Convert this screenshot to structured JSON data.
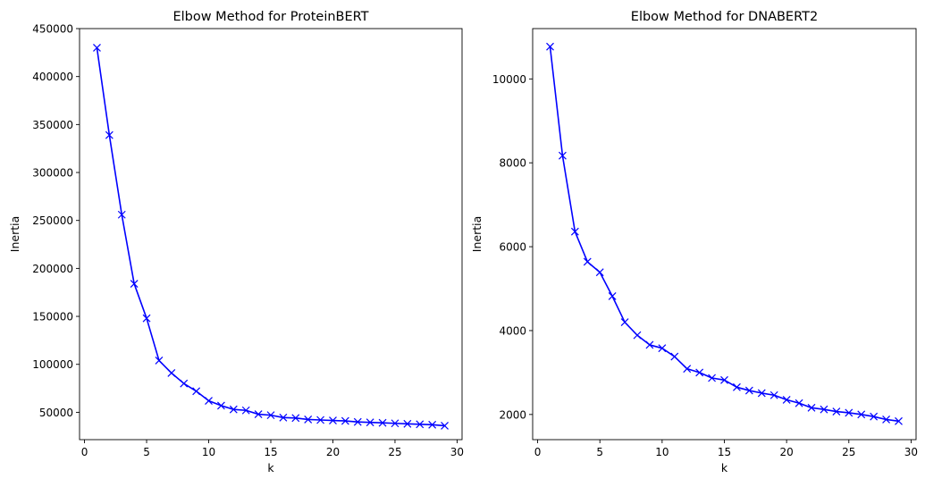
{
  "figure": {
    "background": "#ffffff"
  },
  "chart_data": [
    {
      "type": "line",
      "title": "Elbow Method for ProteinBERT",
      "xlabel": "k",
      "ylabel": "Inertia",
      "xlim": [
        -0.4,
        30.4
      ],
      "ylim": [
        21500,
        450000
      ],
      "xticks": [
        0,
        5,
        10,
        15,
        20,
        25,
        30
      ],
      "yticks": [
        50000,
        100000,
        150000,
        200000,
        250000,
        300000,
        350000,
        400000,
        450000
      ],
      "grid": false,
      "marker": "x",
      "color": "#0000ff",
      "x": [
        1,
        2,
        3,
        4,
        5,
        6,
        7,
        8,
        9,
        10,
        11,
        12,
        13,
        14,
        15,
        16,
        17,
        18,
        19,
        20,
        21,
        22,
        23,
        24,
        25,
        26,
        27,
        28,
        29
      ],
      "values": [
        430000,
        339000,
        256000,
        184000,
        148000,
        104000,
        91000,
        80000,
        72000,
        62000,
        57000,
        53000,
        52000,
        48000,
        47000,
        44500,
        44000,
        42500,
        42000,
        41500,
        41000,
        40000,
        39500,
        39000,
        38500,
        38000,
        37500,
        37000,
        36000
      ]
    },
    {
      "type": "line",
      "title": "Elbow Method for DNABERT2",
      "xlabel": "k",
      "ylabel": "Inertia",
      "xlim": [
        -0.4,
        30.4
      ],
      "ylim": [
        1400,
        11200
      ],
      "xticks": [
        0,
        5,
        10,
        15,
        20,
        25,
        30
      ],
      "yticks": [
        2000,
        4000,
        6000,
        8000,
        10000
      ],
      "grid": false,
      "marker": "x",
      "color": "#0000ff",
      "x": [
        1,
        2,
        3,
        4,
        5,
        6,
        7,
        8,
        9,
        10,
        11,
        12,
        13,
        14,
        15,
        16,
        17,
        18,
        19,
        20,
        21,
        22,
        23,
        24,
        25,
        26,
        27,
        28,
        29
      ],
      "values": [
        10770,
        8170,
        6360,
        5640,
        5390,
        4820,
        4200,
        3890,
        3660,
        3580,
        3380,
        3090,
        3000,
        2870,
        2820,
        2650,
        2570,
        2510,
        2460,
        2350,
        2270,
        2160,
        2120,
        2070,
        2040,
        2000,
        1950,
        1880,
        1840
      ]
    }
  ]
}
